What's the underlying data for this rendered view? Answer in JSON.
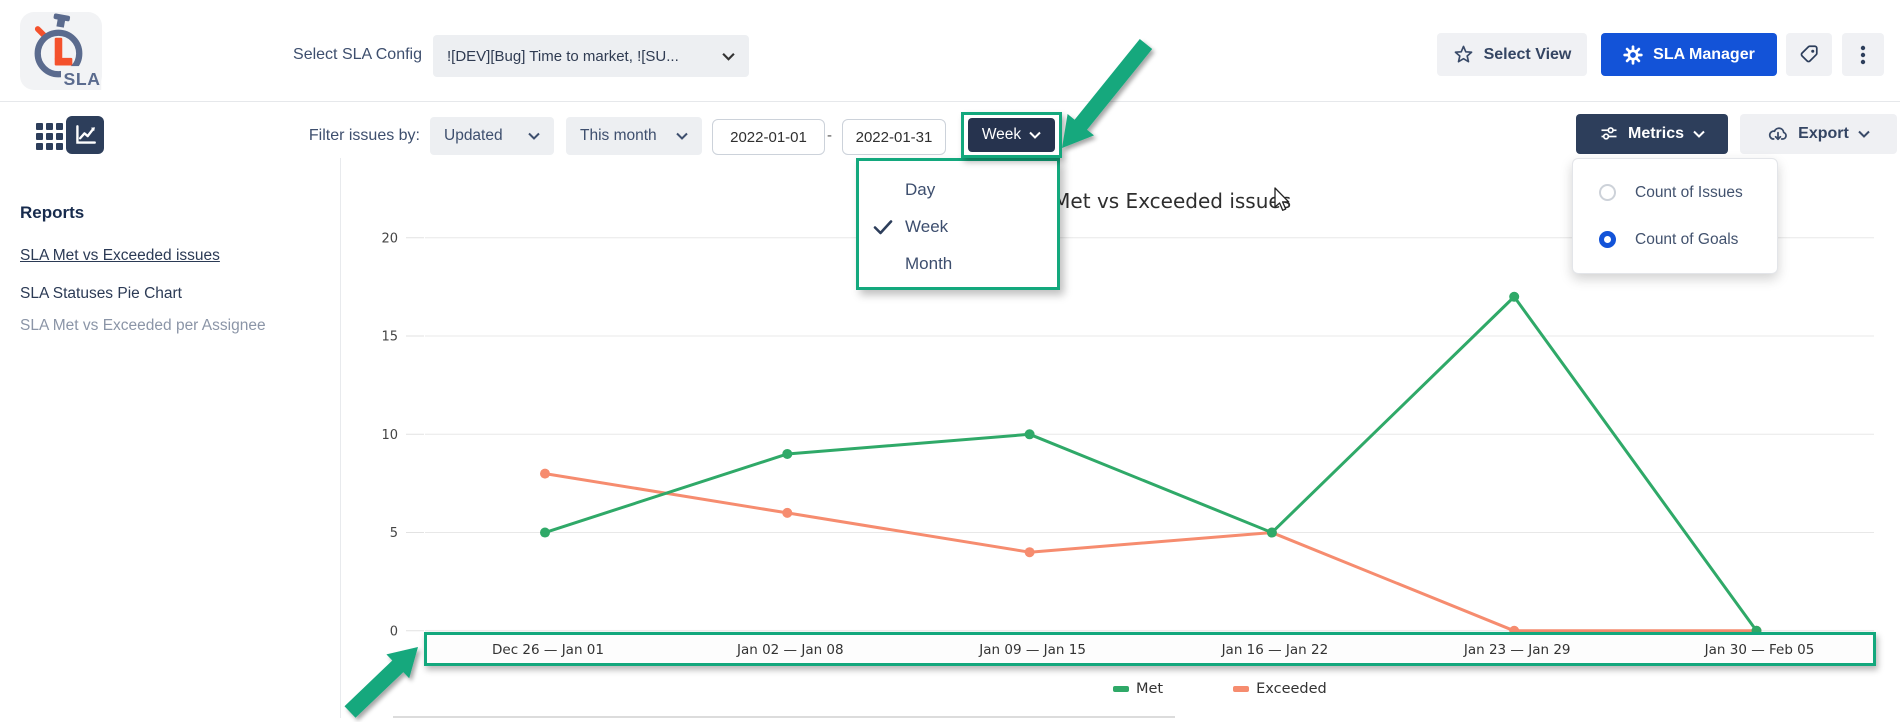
{
  "header": {
    "logo_text": "SLA",
    "select_config_label": "Select SLA Config",
    "config_value": "![DEV][Bug] Time to market, ![SU...",
    "select_view_label": "Select View",
    "sla_manager_label": "SLA Manager"
  },
  "toolbar": {
    "filter_label": "Filter issues by:",
    "field_dropdown_value": "Updated",
    "range_dropdown_value": "This month",
    "date_from": "2022-01-01",
    "date_separator": "-",
    "date_to": "2022-01-31",
    "granularity_value": "Week",
    "metrics_label": "Metrics",
    "export_label": "Export"
  },
  "granularity_menu": {
    "items": [
      {
        "label": "Day",
        "checked": false
      },
      {
        "label": "Week",
        "checked": true
      },
      {
        "label": "Month",
        "checked": false
      }
    ]
  },
  "metrics_menu": {
    "options": [
      {
        "label": "Count of Issues",
        "selected": false
      },
      {
        "label": "Count of Goals",
        "selected": true
      }
    ]
  },
  "sidebar": {
    "title": "Reports",
    "items": [
      {
        "label": "SLA Met vs Exceeded issues",
        "active": true,
        "dimmed": false
      },
      {
        "label": "SLA Statuses Pie Chart",
        "active": false,
        "dimmed": false
      },
      {
        "label": "SLA Met vs Exceeded per Assignee",
        "active": false,
        "dimmed": true
      }
    ]
  },
  "chart_data": {
    "type": "line",
    "title": "SLA Met vs Exceeded issues",
    "categories": [
      "Dec 26 — Jan 01",
      "Jan 02 — Jan 08",
      "Jan 09 — Jan 15",
      "Jan 16 — Jan 22",
      "Jan 23 — Jan 29",
      "Jan 30 — Feb 05"
    ],
    "series": [
      {
        "name": "Met",
        "color": "#2fa968",
        "values": [
          5,
          9,
          10,
          5,
          17,
          0
        ]
      },
      {
        "name": "Exceeded",
        "color": "#f68c6f",
        "values": [
          8,
          6,
          4,
          5,
          0,
          0
        ]
      }
    ],
    "y_ticks": [
      0,
      5,
      10,
      15,
      20
    ],
    "ylim": [
      0,
      20
    ],
    "grid": true,
    "legend_position": "bottom"
  },
  "icons": {
    "app_logo": "stopwatch",
    "select_view": "star-outline",
    "sla_manager": "gear",
    "header_tag": "tag-outline",
    "header_more": "kebab-vertical-dots",
    "view_grid": "grid-3x3",
    "view_chart": "line-chart",
    "dropdowns": "chevron-down",
    "metrics": "sliders",
    "export": "cloud-download",
    "granularity_checked": "checkmark",
    "annotations": "green-arrow-and-box",
    "pointer": "mouse-cursor"
  },
  "colors": {
    "annotation_green": "#13a87d",
    "met_green": "#2fa968",
    "exceeded_orange": "#f68c6f",
    "primary_blue": "#1353d8",
    "navy": "#2d3e5b",
    "logo_orange": "#f4512c"
  }
}
